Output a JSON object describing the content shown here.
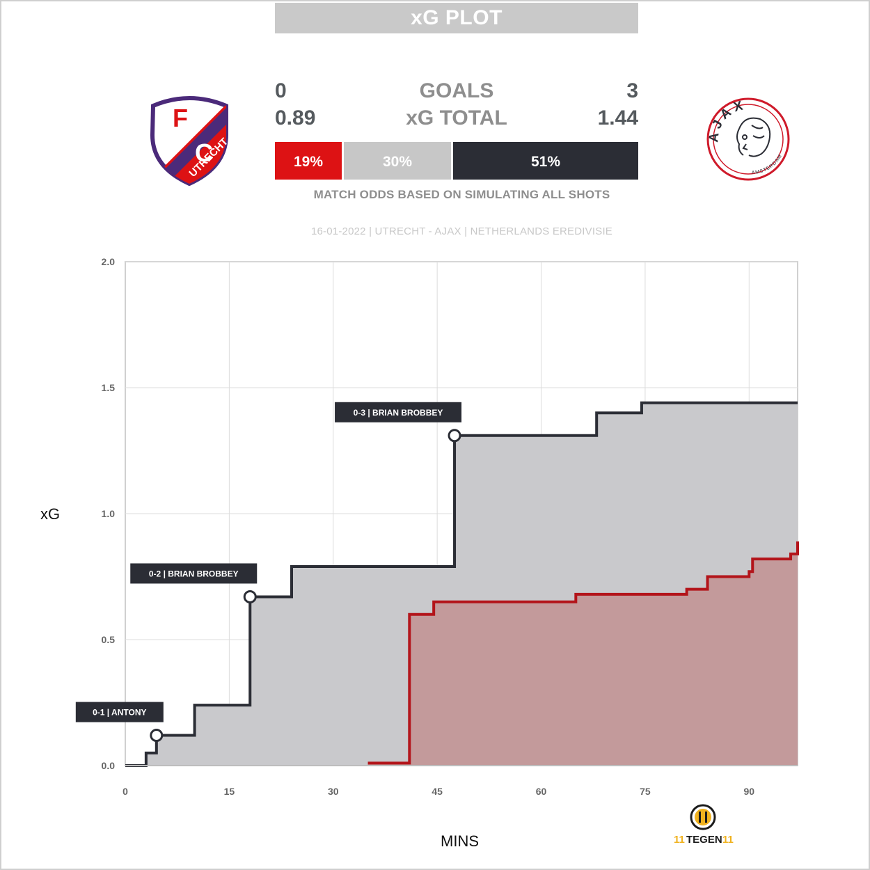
{
  "header": {
    "title": "xG PLOT"
  },
  "scoreboard": {
    "goals": {
      "home": "0",
      "label": "GOALS",
      "away": "3"
    },
    "xg_total": {
      "home": "0.89",
      "label": "xG TOTAL",
      "away": "1.44"
    }
  },
  "odds": {
    "home_win": "19%",
    "draw": "30%",
    "away_win": "51%",
    "fractions": {
      "home": 0.19,
      "draw": 0.3,
      "away": 0.51
    },
    "colors": {
      "home": "#dd1214",
      "draw": "#c7c7c7",
      "away": "#2b2d35"
    },
    "note": "MATCH ODDS BASED ON SIMULATING ALL SHOTS"
  },
  "match_info": "16-01-2022 | UTRECHT - AJAX | NETHERLANDS EREDIVISIE",
  "teams": {
    "home": {
      "crest_icon": "fc-utrecht-crest-icon",
      "crest_text_top": "F",
      "crest_text_mid": "UTRECHT",
      "crest_text_bot": "C",
      "color": "#b3141a"
    },
    "away": {
      "crest_icon": "ajax-crest-icon",
      "crest_text": "AJAX",
      "crest_subtext": "AMSTERDAM",
      "color": "#2b2d35"
    }
  },
  "branding": {
    "logo_icon": "11tegen11-logo-icon",
    "logo_text_a": "11",
    "logo_text_b": "TEGEN",
    "logo_text_c": "11"
  },
  "chart_data": {
    "type": "line",
    "step": true,
    "xlabel": "MINS",
    "ylabel": "xG",
    "xlim": [
      0,
      97
    ],
    "ylim": [
      0,
      2.0
    ],
    "xticks": [
      0,
      15,
      30,
      45,
      60,
      75,
      90
    ],
    "yticks": [
      0.0,
      0.5,
      1.0,
      1.5,
      2.0
    ],
    "ytick_labels": [
      "0.0",
      "0.5",
      "1.0",
      "1.5",
      "2.0"
    ],
    "grid": true,
    "series": [
      {
        "team": "home",
        "color": "#b3141a",
        "fill": "#c39a9b",
        "x": [
          35,
          41,
          44.5,
          65,
          81,
          84,
          90,
          90.5,
          96,
          97
        ],
        "y": [
          0.01,
          0.6,
          0.65,
          0.68,
          0.7,
          0.75,
          0.77,
          0.82,
          0.84,
          0.89
        ]
      },
      {
        "team": "away",
        "color": "#2b2d35",
        "fill": "#c9c9cc",
        "x": [
          0,
          3,
          4.5,
          10,
          18,
          24,
          47.5,
          68,
          74.5,
          97
        ],
        "y": [
          0.0,
          0.05,
          0.12,
          0.24,
          0.67,
          0.79,
          1.31,
          1.4,
          1.44,
          1.44
        ]
      }
    ],
    "annotations": [
      {
        "label": "0-1 | ANTONY",
        "x": 4.5,
        "y": 0.12
      },
      {
        "label": "0-2 | BRIAN BROBBEY",
        "x": 18,
        "y": 0.67
      },
      {
        "label": "0-3 | BRIAN BROBBEY",
        "x": 47.5,
        "y": 1.31
      }
    ]
  }
}
